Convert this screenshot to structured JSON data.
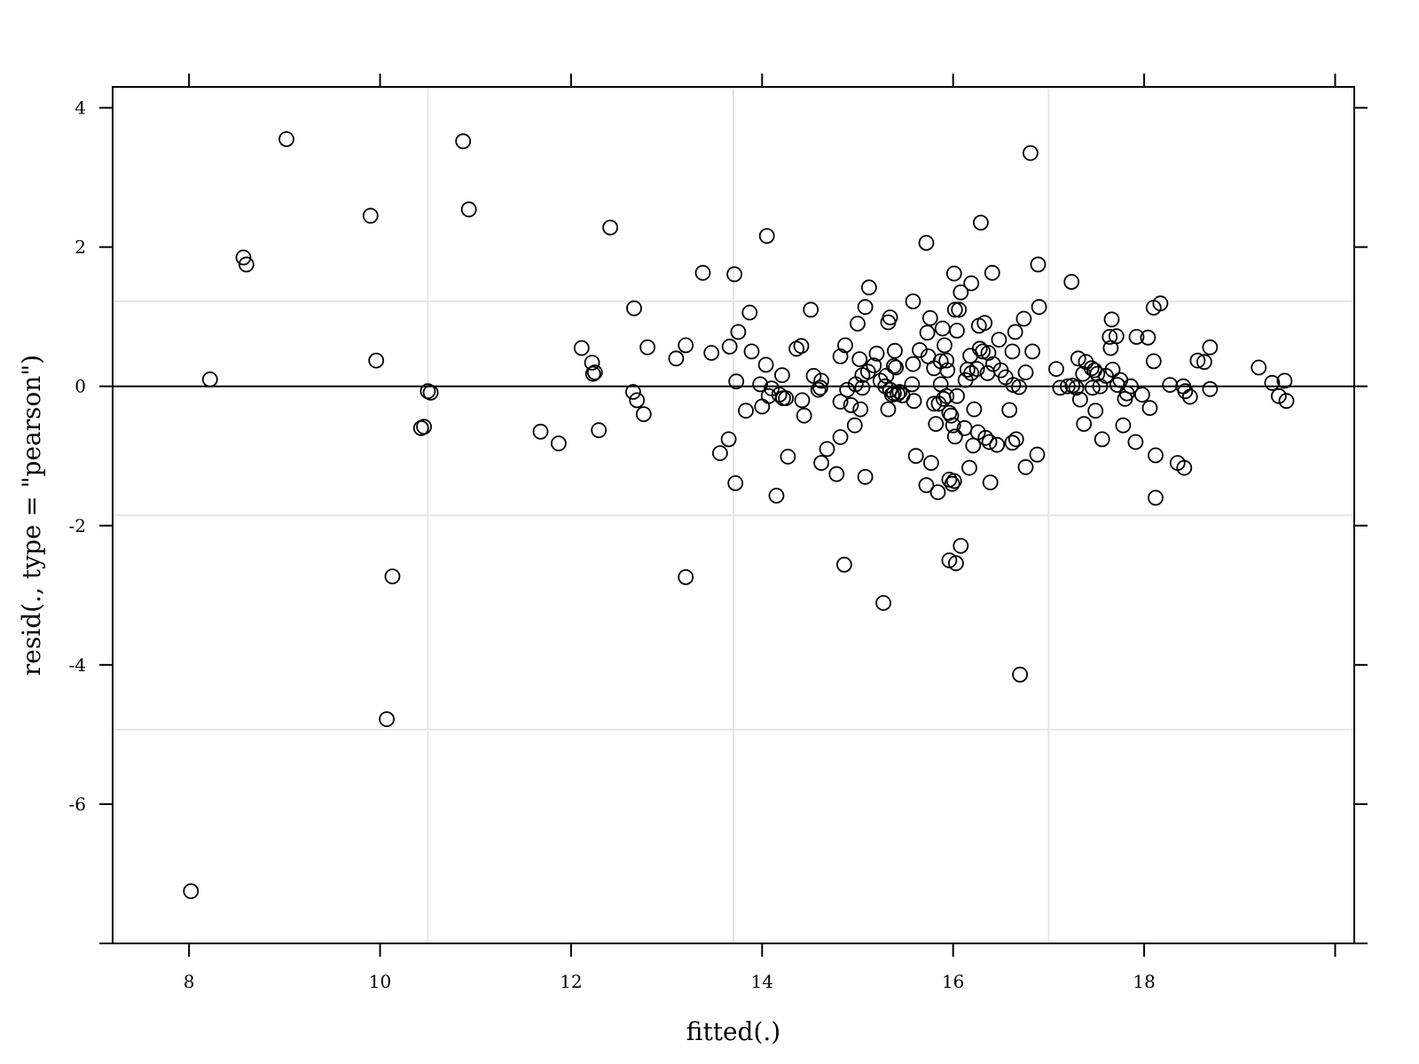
{
  "chart_data": {
    "type": "scatter",
    "xlabel": "fitted(.)",
    "ylabel": "resid(., type = \"pearson\")",
    "xlim": [
      7.2,
      20.2
    ],
    "ylim": [
      -8.0,
      4.3
    ],
    "xticks": [
      8,
      10,
      12,
      14,
      16,
      18
    ],
    "yticks": [
      4,
      2,
      0,
      -2,
      -4,
      -6
    ],
    "xtick_labels": [
      "8",
      "10",
      "12",
      "14",
      "16",
      "18"
    ],
    "ytick_labels": [
      "4",
      "2",
      "0",
      "-2",
      "-4",
      "-6"
    ],
    "grid_x": [
      10.5,
      13.7,
      17.0
    ],
    "grid_y": [
      1.22,
      -1.85,
      -4.93
    ],
    "reference_line_y": 0,
    "marker": "open-circle",
    "points": [
      [
        8.02,
        -7.25
      ],
      [
        8.22,
        0.1
      ],
      [
        8.57,
        1.85
      ],
      [
        8.6,
        1.75
      ],
      [
        9.02,
        3.55
      ],
      [
        9.9,
        2.45
      ],
      [
        9.96,
        0.37
      ],
      [
        10.07,
        -4.78
      ],
      [
        10.13,
        -2.73
      ],
      [
        10.43,
        -0.6
      ],
      [
        10.46,
        -0.58
      ],
      [
        10.5,
        -0.07
      ],
      [
        10.53,
        -0.09
      ],
      [
        10.87,
        3.52
      ],
      [
        10.93,
        2.54
      ],
      [
        11.68,
        -0.65
      ],
      [
        11.87,
        -0.82
      ],
      [
        12.11,
        0.55
      ],
      [
        12.22,
        0.34
      ],
      [
        12.23,
        0.18
      ],
      [
        12.25,
        0.2
      ],
      [
        12.29,
        -0.63
      ],
      [
        12.41,
        2.28
      ],
      [
        12.65,
        -0.08
      ],
      [
        12.66,
        1.12
      ],
      [
        12.69,
        -0.2
      ],
      [
        12.76,
        -0.4
      ],
      [
        12.8,
        0.56
      ],
      [
        13.1,
        0.4
      ],
      [
        13.2,
        0.59
      ],
      [
        13.2,
        -2.74
      ],
      [
        13.38,
        1.63
      ],
      [
        13.47,
        0.48
      ],
      [
        13.56,
        -0.96
      ],
      [
        13.65,
        -0.76
      ],
      [
        13.66,
        0.57
      ],
      [
        13.71,
        1.61
      ],
      [
        13.72,
        -1.39
      ],
      [
        13.73,
        0.07
      ],
      [
        13.75,
        0.78
      ],
      [
        13.83,
        -0.35
      ],
      [
        13.87,
        1.06
      ],
      [
        13.89,
        0.5
      ],
      [
        13.98,
        0.03
      ],
      [
        14.0,
        -0.29
      ],
      [
        14.04,
        0.31
      ],
      [
        14.05,
        2.16
      ],
      [
        14.07,
        -0.14
      ],
      [
        14.1,
        -0.03
      ],
      [
        14.15,
        -1.57
      ],
      [
        14.18,
        -0.12
      ],
      [
        14.21,
        0.16
      ],
      [
        14.22,
        -0.17
      ],
      [
        14.25,
        -0.17
      ],
      [
        14.27,
        -1.01
      ],
      [
        14.36,
        0.54
      ],
      [
        14.41,
        0.58
      ],
      [
        14.42,
        -0.2
      ],
      [
        14.44,
        -0.42
      ],
      [
        14.51,
        1.1
      ],
      [
        14.54,
        0.15
      ],
      [
        14.59,
        -0.05
      ],
      [
        14.61,
        -0.02
      ],
      [
        14.62,
        0.08
      ],
      [
        14.62,
        -1.1
      ],
      [
        14.68,
        -0.9
      ],
      [
        14.78,
        -1.26
      ],
      [
        14.82,
        0.43
      ],
      [
        14.82,
        -0.22
      ],
      [
        14.82,
        -0.73
      ],
      [
        14.86,
        -2.56
      ],
      [
        14.87,
        0.59
      ],
      [
        14.89,
        -0.05
      ],
      [
        14.93,
        -0.27
      ],
      [
        14.97,
        -0.56
      ],
      [
        14.98,
        0.03
      ],
      [
        15.0,
        0.9
      ],
      [
        15.02,
        0.39
      ],
      [
        15.03,
        -0.33
      ],
      [
        15.05,
        0.16
      ],
      [
        15.05,
        -0.02
      ],
      [
        15.08,
        1.14
      ],
      [
        15.08,
        -1.3
      ],
      [
        15.11,
        0.21
      ],
      [
        15.12,
        1.42
      ],
      [
        15.17,
        0.3
      ],
      [
        15.2,
        0.47
      ],
      [
        15.24,
        0.08
      ],
      [
        15.27,
        -3.11
      ],
      [
        15.29,
        0.0
      ],
      [
        15.3,
        0.15
      ],
      [
        15.32,
        -0.33
      ],
      [
        15.32,
        0.92
      ],
      [
        15.34,
        0.99
      ],
      [
        15.34,
        -0.05
      ],
      [
        15.36,
        -0.12
      ],
      [
        15.38,
        -0.1
      ],
      [
        15.38,
        0.29
      ],
      [
        15.39,
        0.51
      ],
      [
        15.4,
        0.27
      ],
      [
        15.42,
        -0.11
      ],
      [
        15.44,
        -0.08
      ],
      [
        15.47,
        -0.13
      ],
      [
        15.57,
        0.03
      ],
      [
        15.58,
        1.22
      ],
      [
        15.58,
        0.32
      ],
      [
        15.59,
        -0.21
      ],
      [
        15.61,
        -1.0
      ],
      [
        15.65,
        0.52
      ],
      [
        15.72,
        2.06
      ],
      [
        15.72,
        -1.42
      ],
      [
        15.73,
        0.77
      ],
      [
        15.74,
        0.43
      ],
      [
        15.76,
        0.98
      ],
      [
        15.77,
        -1.1
      ],
      [
        15.8,
        0.26
      ],
      [
        15.8,
        -0.25
      ],
      [
        15.82,
        -0.54
      ],
      [
        15.84,
        -1.52
      ],
      [
        15.85,
        -0.25
      ],
      [
        15.87,
        0.03
      ],
      [
        15.87,
        0.36
      ],
      [
        15.89,
        0.83
      ],
      [
        15.9,
        -0.18
      ],
      [
        15.91,
        0.59
      ],
      [
        15.93,
        -0.14
      ],
      [
        15.93,
        0.37
      ],
      [
        15.94,
        0.23
      ],
      [
        15.96,
        -0.38
      ],
      [
        15.96,
        -2.5
      ],
      [
        15.96,
        -1.34
      ],
      [
        15.98,
        -0.42
      ],
      [
        15.99,
        -1.4
      ],
      [
        16.0,
        -0.56
      ],
      [
        16.01,
        -1.36
      ],
      [
        16.01,
        1.62
      ],
      [
        16.02,
        1.1
      ],
      [
        16.02,
        -0.72
      ],
      [
        16.03,
        -2.54
      ],
      [
        16.04,
        0.8
      ],
      [
        16.04,
        -0.14
      ],
      [
        16.06,
        1.1
      ],
      [
        16.08,
        1.35
      ],
      [
        16.08,
        -2.29
      ],
      [
        16.12,
        -0.6
      ],
      [
        16.13,
        0.09
      ],
      [
        16.15,
        0.24
      ],
      [
        16.17,
        -1.17
      ],
      [
        16.18,
        0.44
      ],
      [
        16.19,
        1.48
      ],
      [
        16.19,
        0.19
      ],
      [
        16.21,
        -0.85
      ],
      [
        16.22,
        -0.33
      ],
      [
        16.25,
        0.25
      ],
      [
        16.26,
        -0.66
      ],
      [
        16.27,
        0.87
      ],
      [
        16.28,
        0.54
      ],
      [
        16.29,
        2.35
      ],
      [
        16.31,
        0.5
      ],
      [
        16.33,
        0.91
      ],
      [
        16.34,
        -0.74
      ],
      [
        16.36,
        0.19
      ],
      [
        16.37,
        0.48
      ],
      [
        16.38,
        -0.8
      ],
      [
        16.39,
        -1.38
      ],
      [
        16.41,
        1.63
      ],
      [
        16.42,
        0.32
      ],
      [
        16.46,
        -0.84
      ],
      [
        16.48,
        0.67
      ],
      [
        16.5,
        0.23
      ],
      [
        16.55,
        0.13
      ],
      [
        16.59,
        -0.34
      ],
      [
        16.62,
        0.5
      ],
      [
        16.62,
        -0.81
      ],
      [
        16.63,
        0.02
      ],
      [
        16.65,
        0.78
      ],
      [
        16.66,
        -0.76
      ],
      [
        16.69,
        -0.01
      ],
      [
        16.7,
        -4.14
      ],
      [
        16.74,
        0.97
      ],
      [
        16.76,
        0.2
      ],
      [
        16.76,
        -1.16
      ],
      [
        16.81,
        3.35
      ],
      [
        16.83,
        0.5
      ],
      [
        16.88,
        -0.98
      ],
      [
        16.89,
        1.75
      ],
      [
        16.9,
        1.14
      ],
      [
        17.08,
        0.25
      ],
      [
        17.12,
        -0.02
      ],
      [
        17.2,
        0.0
      ],
      [
        17.24,
        1.5
      ],
      [
        17.25,
        0.01
      ],
      [
        17.29,
        -0.02
      ],
      [
        17.31,
        0.4
      ],
      [
        17.33,
        -0.19
      ],
      [
        17.36,
        0.18
      ],
      [
        17.37,
        -0.54
      ],
      [
        17.39,
        0.35
      ],
      [
        17.45,
        0.26
      ],
      [
        17.46,
        -0.02
      ],
      [
        17.48,
        0.23
      ],
      [
        17.49,
        -0.35
      ],
      [
        17.51,
        0.18
      ],
      [
        17.54,
        0.0
      ],
      [
        17.56,
        -0.76
      ],
      [
        17.6,
        0.15
      ],
      [
        17.64,
        0.71
      ],
      [
        17.65,
        0.55
      ],
      [
        17.66,
        0.96
      ],
      [
        17.67,
        0.24
      ],
      [
        17.71,
        0.72
      ],
      [
        17.72,
        0.02
      ],
      [
        17.75,
        0.09
      ],
      [
        17.78,
        -0.56
      ],
      [
        17.8,
        -0.18
      ],
      [
        17.82,
        -0.1
      ],
      [
        17.86,
        0.0
      ],
      [
        17.91,
        -0.8
      ],
      [
        17.92,
        0.71
      ],
      [
        17.98,
        -0.12
      ],
      [
        18.04,
        0.7
      ],
      [
        18.06,
        -0.31
      ],
      [
        18.1,
        0.36
      ],
      [
        18.1,
        1.13
      ],
      [
        18.12,
        -0.99
      ],
      [
        18.12,
        -1.6
      ],
      [
        18.17,
        1.19
      ],
      [
        18.27,
        0.02
      ],
      [
        18.35,
        -1.1
      ],
      [
        18.41,
        0.0
      ],
      [
        18.42,
        -1.17
      ],
      [
        18.43,
        -0.07
      ],
      [
        18.48,
        -0.15
      ],
      [
        18.56,
        0.37
      ],
      [
        18.63,
        0.35
      ],
      [
        18.69,
        0.56
      ],
      [
        18.69,
        -0.04
      ],
      [
        19.2,
        0.27
      ],
      [
        19.34,
        0.05
      ],
      [
        19.41,
        -0.14
      ],
      [
        19.47,
        0.08
      ],
      [
        19.49,
        -0.21
      ]
    ]
  }
}
